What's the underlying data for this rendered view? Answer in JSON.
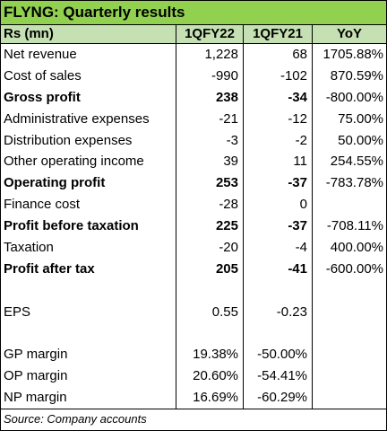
{
  "title": "FLYNG: Quarterly results",
  "columns": {
    "label": "Rs (mn)",
    "c1": "1QFY22",
    "c2": "1QFY21",
    "c3": "YoY"
  },
  "rows": [
    {
      "label": "Net revenue",
      "c1": "1,228",
      "c2": "68",
      "c3": "1705.88%",
      "bold": false
    },
    {
      "label": "Cost of sales",
      "c1": "-990",
      "c2": "-102",
      "c3": "870.59%",
      "bold": false
    },
    {
      "label": "Gross profit",
      "c1": "238",
      "c2": "-34",
      "c3": "-800.00%",
      "bold": true
    },
    {
      "label": "Administrative expenses",
      "c1": "-21",
      "c2": "-12",
      "c3": "75.00%",
      "bold": false
    },
    {
      "label": "Distribution expenses",
      "c1": "-3",
      "c2": "-2",
      "c3": "50.00%",
      "bold": false
    },
    {
      "label": "Other operating income",
      "c1": "39",
      "c2": "11",
      "c3": "254.55%",
      "bold": false
    },
    {
      "label": "Operating profit",
      "c1": "253",
      "c2": "-37",
      "c3": "-783.78%",
      "bold": true
    },
    {
      "label": "Finance cost",
      "c1": "-28",
      "c2": "0",
      "c3": "",
      "bold": false
    },
    {
      "label": "Profit before taxation",
      "c1": "225",
      "c2": "-37",
      "c3": "-708.11%",
      "bold": true
    },
    {
      "label": "Taxation",
      "c1": "-20",
      "c2": "-4",
      "c3": "400.00%",
      "bold": false
    },
    {
      "label": "Profit after tax",
      "c1": "205",
      "c2": "-41",
      "c3": "-600.00%",
      "bold": true
    },
    {
      "label": "",
      "c1": "",
      "c2": "",
      "c3": "",
      "bold": false
    },
    {
      "label": "EPS",
      "c1": "0.55",
      "c2": "-0.23",
      "c3": "",
      "bold": false
    },
    {
      "label": "",
      "c1": "",
      "c2": "",
      "c3": "",
      "bold": false
    },
    {
      "label": "GP margin",
      "c1": "19.38%",
      "c2": "-50.00%",
      "c3": "",
      "bold": false
    },
    {
      "label": "OP margin",
      "c1": "20.60%",
      "c2": "-54.41%",
      "c3": "",
      "bold": false
    },
    {
      "label": "NP margin",
      "c1": "16.69%",
      "c2": "-60.29%",
      "c3": "",
      "bold": false
    }
  ],
  "footer": "Source: Company accounts"
}
